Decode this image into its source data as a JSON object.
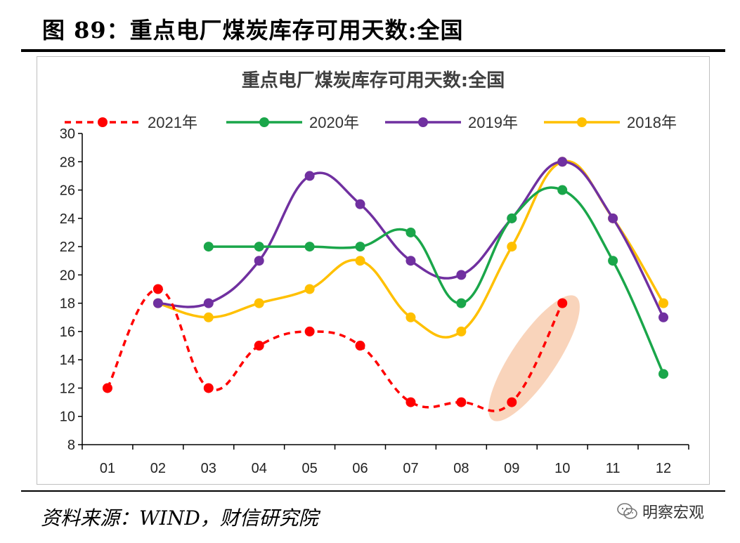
{
  "figure_title": "图 89：重点电厂煤炭库存可用天数:全国",
  "source": "资料来源：WIND，财信研究院",
  "watermark": "明察宏观",
  "colors": {
    "s2021": "#ff0000",
    "s2020": "#1aa64a",
    "s2019": "#7030a0",
    "s2018": "#ffc000",
    "highlight": "#f4b183"
  },
  "chart_data": {
    "type": "line",
    "title": "重点电厂煤炭库存可用天数:全国",
    "categories": [
      "01",
      "02",
      "03",
      "04",
      "05",
      "06",
      "07",
      "08",
      "09",
      "10",
      "11",
      "12"
    ],
    "ylim": [
      8,
      30
    ],
    "yticks": [
      8,
      10,
      12,
      14,
      16,
      18,
      20,
      22,
      24,
      26,
      28,
      30
    ],
    "grid": false,
    "legend": "top",
    "series": [
      {
        "name": "2021年",
        "values": [
          12,
          19,
          12,
          15,
          16,
          15,
          11,
          11,
          11,
          18,
          null,
          null
        ],
        "style": "dashed"
      },
      {
        "name": "2020年",
        "values": [
          null,
          null,
          22,
          22,
          22,
          22,
          23,
          18,
          24,
          26,
          21,
          13
        ],
        "style": "solid"
      },
      {
        "name": "2019年",
        "values": [
          null,
          18,
          18,
          21,
          27,
          25,
          21,
          20,
          24,
          28,
          24,
          17
        ],
        "style": "solid"
      },
      {
        "name": "2018年",
        "values": [
          null,
          18,
          17,
          18,
          19,
          21,
          17,
          16,
          22,
          28,
          24,
          18
        ],
        "style": "solid"
      }
    ]
  }
}
